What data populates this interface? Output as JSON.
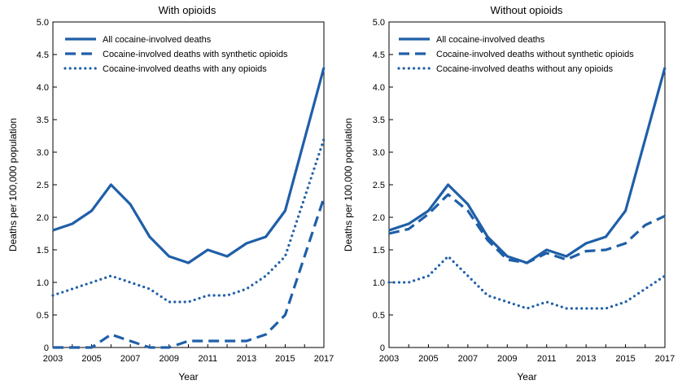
{
  "colors": {
    "series": "#1f5fa8",
    "axis": "#000000"
  },
  "chart_data": [
    {
      "type": "line",
      "title": "With opioids",
      "xlabel": "Year",
      "ylabel": "Deaths per 100,000 population",
      "xlim": [
        2003,
        2017
      ],
      "ylim": [
        0,
        5.0
      ],
      "x_ticks": [
        "2003",
        "2005",
        "2007",
        "2009",
        "2011",
        "2013",
        "2015",
        "2017"
      ],
      "y_ticks": [
        "0",
        "0.5",
        "1.0",
        "1.5",
        "2.0",
        "2.5",
        "3.0",
        "3.5",
        "4.0",
        "4.5",
        "5.0"
      ],
      "legend_position": "top-left",
      "x": [
        2003,
        2004,
        2005,
        2006,
        2007,
        2008,
        2009,
        2010,
        2011,
        2012,
        2013,
        2014,
        2015,
        2016,
        2017
      ],
      "series": [
        {
          "name": "All cocaine-involved deaths",
          "style": "solid",
          "values": [
            1.8,
            1.9,
            2.1,
            2.5,
            2.2,
            1.7,
            1.4,
            1.3,
            1.5,
            1.4,
            1.6,
            1.7,
            2.1,
            3.2,
            4.3
          ]
        },
        {
          "name": "Cocaine-involved deaths with synthetic opioids",
          "style": "dashed",
          "values": [
            0.0,
            0.0,
            0.0,
            0.2,
            0.1,
            0.0,
            0.0,
            0.1,
            0.1,
            0.1,
            0.1,
            0.2,
            0.5,
            1.4,
            2.3
          ]
        },
        {
          "name": "Cocaine-involved deaths with any opioids",
          "style": "dotted",
          "values": [
            0.8,
            0.9,
            1.0,
            1.1,
            1.0,
            0.9,
            0.7,
            0.7,
            0.8,
            0.8,
            0.9,
            1.1,
            1.4,
            2.3,
            3.2
          ]
        }
      ]
    },
    {
      "type": "line",
      "title": "Without opioids",
      "xlabel": "Year",
      "ylabel": "Deaths per 100,000 population",
      "xlim": [
        2003,
        2017
      ],
      "ylim": [
        0,
        5.0
      ],
      "x_ticks": [
        "2003",
        "2005",
        "2007",
        "2009",
        "2011",
        "2013",
        "2015",
        "2017"
      ],
      "y_ticks": [
        "0",
        "0.5",
        "1.0",
        "1.5",
        "2.0",
        "2.5",
        "3.0",
        "3.5",
        "4.0",
        "4.5",
        "5.0"
      ],
      "legend_position": "top-left",
      "x": [
        2003,
        2004,
        2005,
        2006,
        2007,
        2008,
        2009,
        2010,
        2011,
        2012,
        2013,
        2014,
        2015,
        2016,
        2017
      ],
      "series": [
        {
          "name": "All cocaine-involved deaths",
          "style": "solid",
          "values": [
            1.8,
            1.9,
            2.1,
            2.5,
            2.2,
            1.7,
            1.4,
            1.3,
            1.5,
            1.4,
            1.6,
            1.7,
            2.1,
            3.2,
            4.3
          ]
        },
        {
          "name": "Cocaine-involved deaths without synthetic opioids",
          "style": "dashed",
          "values": [
            1.75,
            1.82,
            2.05,
            2.35,
            2.1,
            1.65,
            1.35,
            1.3,
            1.45,
            1.35,
            1.48,
            1.5,
            1.6,
            1.88,
            2.02
          ]
        },
        {
          "name": "Cocaine-involved deaths without any opioids",
          "style": "dotted",
          "values": [
            1.0,
            1.0,
            1.1,
            1.4,
            1.1,
            0.8,
            0.7,
            0.6,
            0.7,
            0.6,
            0.6,
            0.6,
            0.7,
            0.9,
            1.1
          ]
        }
      ]
    }
  ]
}
